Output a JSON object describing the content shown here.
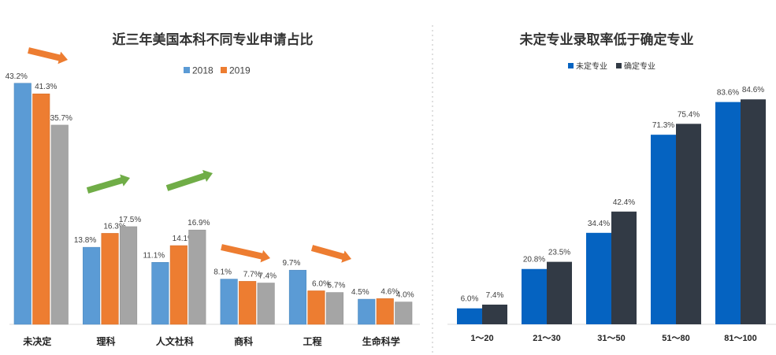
{
  "chart_data": [
    {
      "type": "bar",
      "title": "近三年美国本科不同专业申请占比",
      "categories": [
        "未决定",
        "理科",
        "人文社科",
        "商科",
        "工程",
        "生命科学"
      ],
      "series": [
        {
          "name": "2018",
          "color": "#5b9bd5",
          "values": [
            43.2,
            13.8,
            11.1,
            8.1,
            9.7,
            4.5
          ]
        },
        {
          "name": "2019",
          "color": "#ed7d31",
          "values": [
            41.3,
            16.3,
            14.1,
            7.7,
            6.0,
            4.6
          ]
        },
        {
          "name": "",
          "color": "#a5a5a5",
          "values": [
            35.7,
            17.5,
            16.9,
            7.4,
            5.7,
            4.0
          ]
        }
      ],
      "value_labels": [
        [
          "43.2%",
          "13.8%",
          "11.1%",
          "8.1%",
          "9.7%",
          "4.5%"
        ],
        [
          "41.3%",
          "16.3%",
          "14.1%",
          "7.7%",
          "6.0%",
          "4.6%"
        ],
        [
          "35.7%",
          "17.5%",
          "16.9%",
          "7.4%",
          "5.7%",
          "4.0%"
        ]
      ],
      "trend_arrows": [
        {
          "category": "未决定",
          "direction": "down",
          "color": "#ed7d31"
        },
        {
          "category": "理科",
          "direction": "up",
          "color": "#70ad47"
        },
        {
          "category": "人文社科",
          "direction": "up",
          "color": "#70ad47"
        },
        {
          "category": "商科",
          "direction": "down",
          "color": "#ed7d31"
        },
        {
          "category": "工程",
          "direction": "down",
          "color": "#ed7d31"
        }
      ],
      "legend_position": "top-center",
      "ylim": [
        0,
        45
      ],
      "grid": false
    },
    {
      "type": "bar",
      "title": "未定专业录取率低于确定专业",
      "categories": [
        "1～20",
        "21～30",
        "31～50",
        "51～80",
        "81～100"
      ],
      "series": [
        {
          "name": "未定专业",
          "color": "#0563c1",
          "values": [
            6.0,
            20.8,
            34.4,
            71.3,
            83.6
          ]
        },
        {
          "name": "确定专业",
          "color": "#323a45",
          "values": [
            7.4,
            23.5,
            42.4,
            75.4,
            84.6
          ]
        }
      ],
      "value_labels": [
        [
          "6.0%",
          "20.8%",
          "34.4%",
          "71.3%",
          "83.6%"
        ],
        [
          "7.4%",
          "23.5%",
          "42.4%",
          "75.4%",
          "84.6%"
        ]
      ],
      "legend_position": "top-left",
      "ylim": [
        0,
        90
      ],
      "grid": false
    }
  ]
}
